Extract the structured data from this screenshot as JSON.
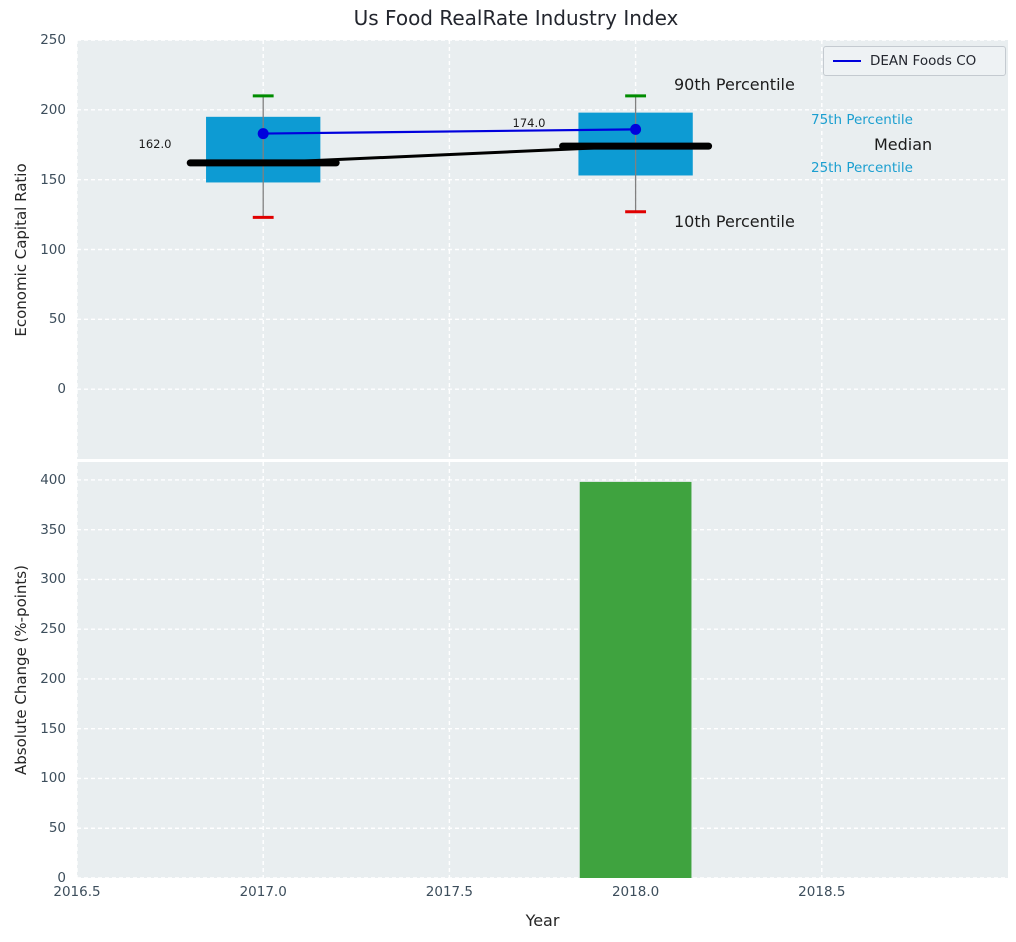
{
  "figure": {
    "title": "Us Food RealRate Industry Index",
    "legend": {
      "label": "DEAN Foods CO"
    }
  },
  "colors": {
    "figure_background": "#ffffff",
    "axes_background": "#e9eef0",
    "grid": "#ffffff",
    "box_fill": "#0d9bd3",
    "bar_fill": "#3fa33f",
    "cap_top_green": "#008c00",
    "cap_bottom_red": "#e00000",
    "whisker_gray": "#808080",
    "dean_line_blue": "#0000dd",
    "median_black": "#000000",
    "tick_label": "#3d4e5c",
    "text_dark": "#1c1c1c",
    "percentile_label_cyan": "#1b9fd0"
  },
  "chart_data": [
    {
      "type": "boxplot+line",
      "title": "Us Food RealRate Industry Index",
      "ylabel": "Economic Capital Ratio",
      "xlim": [
        2016.5,
        2019.0
      ],
      "ylim": [
        -50,
        250
      ],
      "yticks": [
        0,
        50,
        100,
        150,
        200,
        250
      ],
      "ytick_labels": [
        "0",
        "50",
        "100",
        "150",
        "200",
        "250"
      ],
      "xticks": [
        2016.5,
        2017.0,
        2017.5,
        2018.0,
        2018.5
      ],
      "grid": "white dashed, horizontal + vertical",
      "legend": {
        "label": "DEAN Foods CO",
        "location": "upper right"
      },
      "box_width_years": 0.307,
      "median_segment_halfwidth_years": 0.196,
      "cap_halfwidth_years": 0.028,
      "boxes": [
        {
          "year": 2017,
          "p10": 123,
          "p25": 148,
          "median": 162,
          "p75": 195,
          "p90": 210,
          "median_label": "162.0"
        },
        {
          "year": 2018,
          "p10": 127,
          "p25": 153,
          "median": 174,
          "p75": 198,
          "p90": 210,
          "median_label": "174.0"
        }
      ],
      "series": [
        {
          "name": "DEAN Foods CO",
          "style": "line+marker",
          "color": "#0000dd",
          "x": [
            2017,
            2018
          ],
          "y": [
            183,
            186
          ]
        },
        {
          "name": "Median trend",
          "style": "line",
          "color": "#000000",
          "x": [
            2017,
            2018
          ],
          "y": [
            162,
            174
          ]
        }
      ],
      "annotations": {
        "p90": "90th Percentile",
        "p10": "10th Percentile",
        "p75": "75th Percentile",
        "median": "Median",
        "p25": "25th Percentile"
      }
    },
    {
      "type": "bar",
      "ylabel": "Absolute Change (%-points)",
      "xlabel": "Year",
      "xlim": [
        2016.5,
        2019.0
      ],
      "ylim": [
        0,
        418
      ],
      "yticks": [
        0,
        50,
        100,
        150,
        200,
        250,
        300,
        350,
        400
      ],
      "ytick_labels": [
        "0",
        "50",
        "100",
        "150",
        "200",
        "250",
        "300",
        "350",
        "400"
      ],
      "xticks": [
        2016.5,
        2017.0,
        2017.5,
        2018.0,
        2018.5
      ],
      "xtick_labels": [
        "2016.5",
        "2017.0",
        "2017.5",
        "2018.0",
        "2018.5"
      ],
      "grid": "white dashed, horizontal + vertical",
      "bar_width_years": 0.3,
      "bars": [
        {
          "year": 2018,
          "value": 398
        }
      ]
    }
  ]
}
